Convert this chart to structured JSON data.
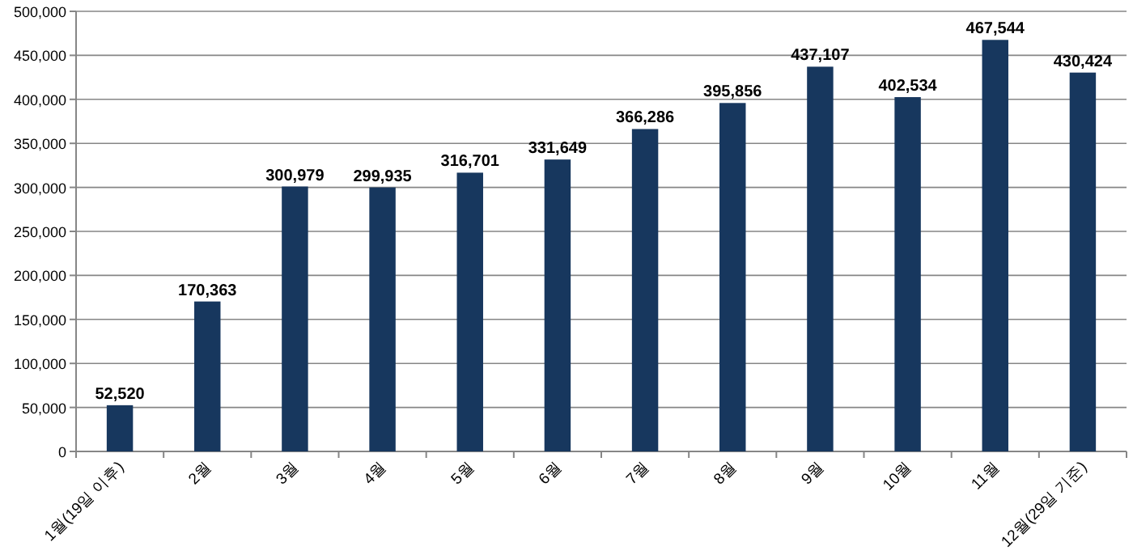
{
  "chart_data": {
    "type": "bar",
    "categories": [
      "1월(19일 이후)",
      "2월",
      "3월",
      "4월",
      "5월",
      "6월",
      "7월",
      "8월",
      "9월",
      "10월",
      "11월",
      "12월(29일 기준)"
    ],
    "values": [
      52520,
      170363,
      300979,
      299935,
      316701,
      331649,
      366286,
      395856,
      437107,
      402534,
      467544,
      430424
    ],
    "color": "#17375e",
    "ylim": [
      0,
      500000
    ],
    "yticks": [
      {
        "value": 0,
        "label": "0"
      },
      {
        "value": 50000,
        "label": "50,000"
      },
      {
        "value": 100000,
        "label": "100,000"
      },
      {
        "value": 150000,
        "label": "150,000"
      },
      {
        "value": 200000,
        "label": "200,000"
      },
      {
        "value": 250000,
        "label": "250,000"
      },
      {
        "value": 300000,
        "label": "300,000"
      },
      {
        "value": 350000,
        "label": "350,000"
      },
      {
        "value": 400000,
        "label": "400,000"
      },
      {
        "value": 450000,
        "label": "450,000"
      },
      {
        "value": 500000,
        "label": "500,000"
      }
    ],
    "grid": "y",
    "value_labels": [
      "52,520",
      "170,363",
      "300,979",
      "299,935",
      "316,701",
      "331,649",
      "366,286",
      "395,856",
      "437,107",
      "402,534",
      "467,544",
      "430,424"
    ]
  }
}
